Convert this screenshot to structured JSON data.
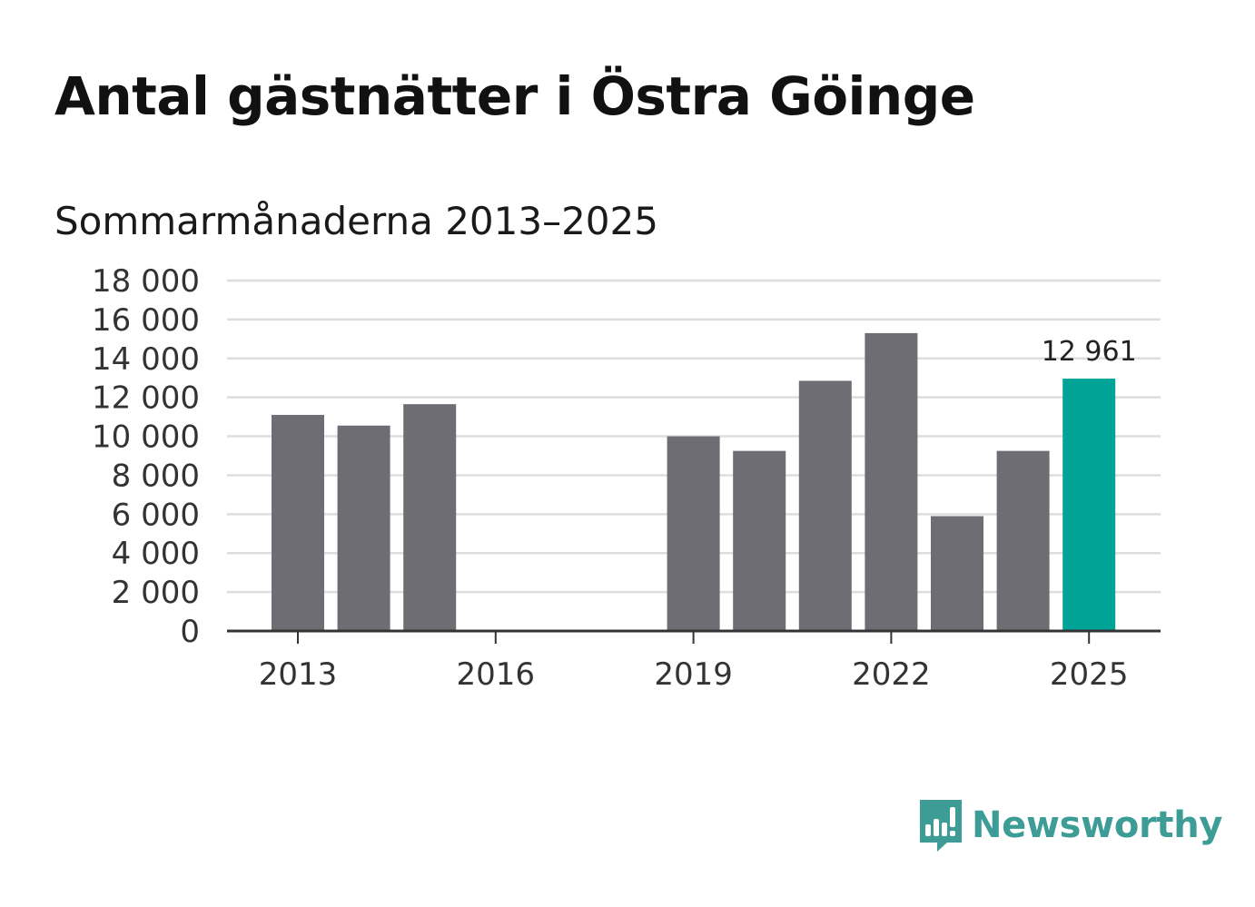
{
  "title": "Antal gästnätter i Östra Göinge",
  "subtitle": "Sommarmånaderna 2013–2025",
  "brand": {
    "name": "Newsworthy",
    "color": "#3e9c96",
    "icon": "bar-chart-speech-bubble-icon"
  },
  "colors": {
    "bar": "#6e6d73",
    "highlight": "#00a396",
    "grid": "#dddddd",
    "axis": "#333333"
  },
  "chart_data": {
    "type": "bar",
    "title": "Antal gästnätter i Östra Göinge",
    "subtitle": "Sommarmånaderna 2013–2025",
    "categories": [
      2013,
      2014,
      2015,
      2016,
      2017,
      2018,
      2019,
      2020,
      2021,
      2022,
      2023,
      2024,
      2025
    ],
    "values": [
      11100,
      10550,
      11650,
      null,
      null,
      null,
      10000,
      9250,
      12850,
      15300,
      5900,
      9250,
      12961
    ],
    "highlight_category": 2025,
    "data_labels": [
      {
        "category": 2025,
        "text": "12 961"
      }
    ],
    "ylim": [
      0,
      18000
    ],
    "yticks": [
      {
        "value": 0,
        "label": "0"
      },
      {
        "value": 2000,
        "label": "2 000"
      },
      {
        "value": 4000,
        "label": "4 000"
      },
      {
        "value": 6000,
        "label": "6 000"
      },
      {
        "value": 8000,
        "label": "8 000"
      },
      {
        "value": 10000,
        "label": "10 000"
      },
      {
        "value": 12000,
        "label": "12 000"
      },
      {
        "value": 14000,
        "label": "14 000"
      },
      {
        "value": 16000,
        "label": "16 000"
      },
      {
        "value": 18000,
        "label": "18 000"
      }
    ],
    "xticks": [
      {
        "value": 2013,
        "label": "2013"
      },
      {
        "value": 2016,
        "label": "2016"
      },
      {
        "value": 2019,
        "label": "2019"
      },
      {
        "value": 2022,
        "label": "2022"
      },
      {
        "value": 2025,
        "label": "2025"
      }
    ],
    "grid": true,
    "xlabel": "",
    "ylabel": ""
  }
}
